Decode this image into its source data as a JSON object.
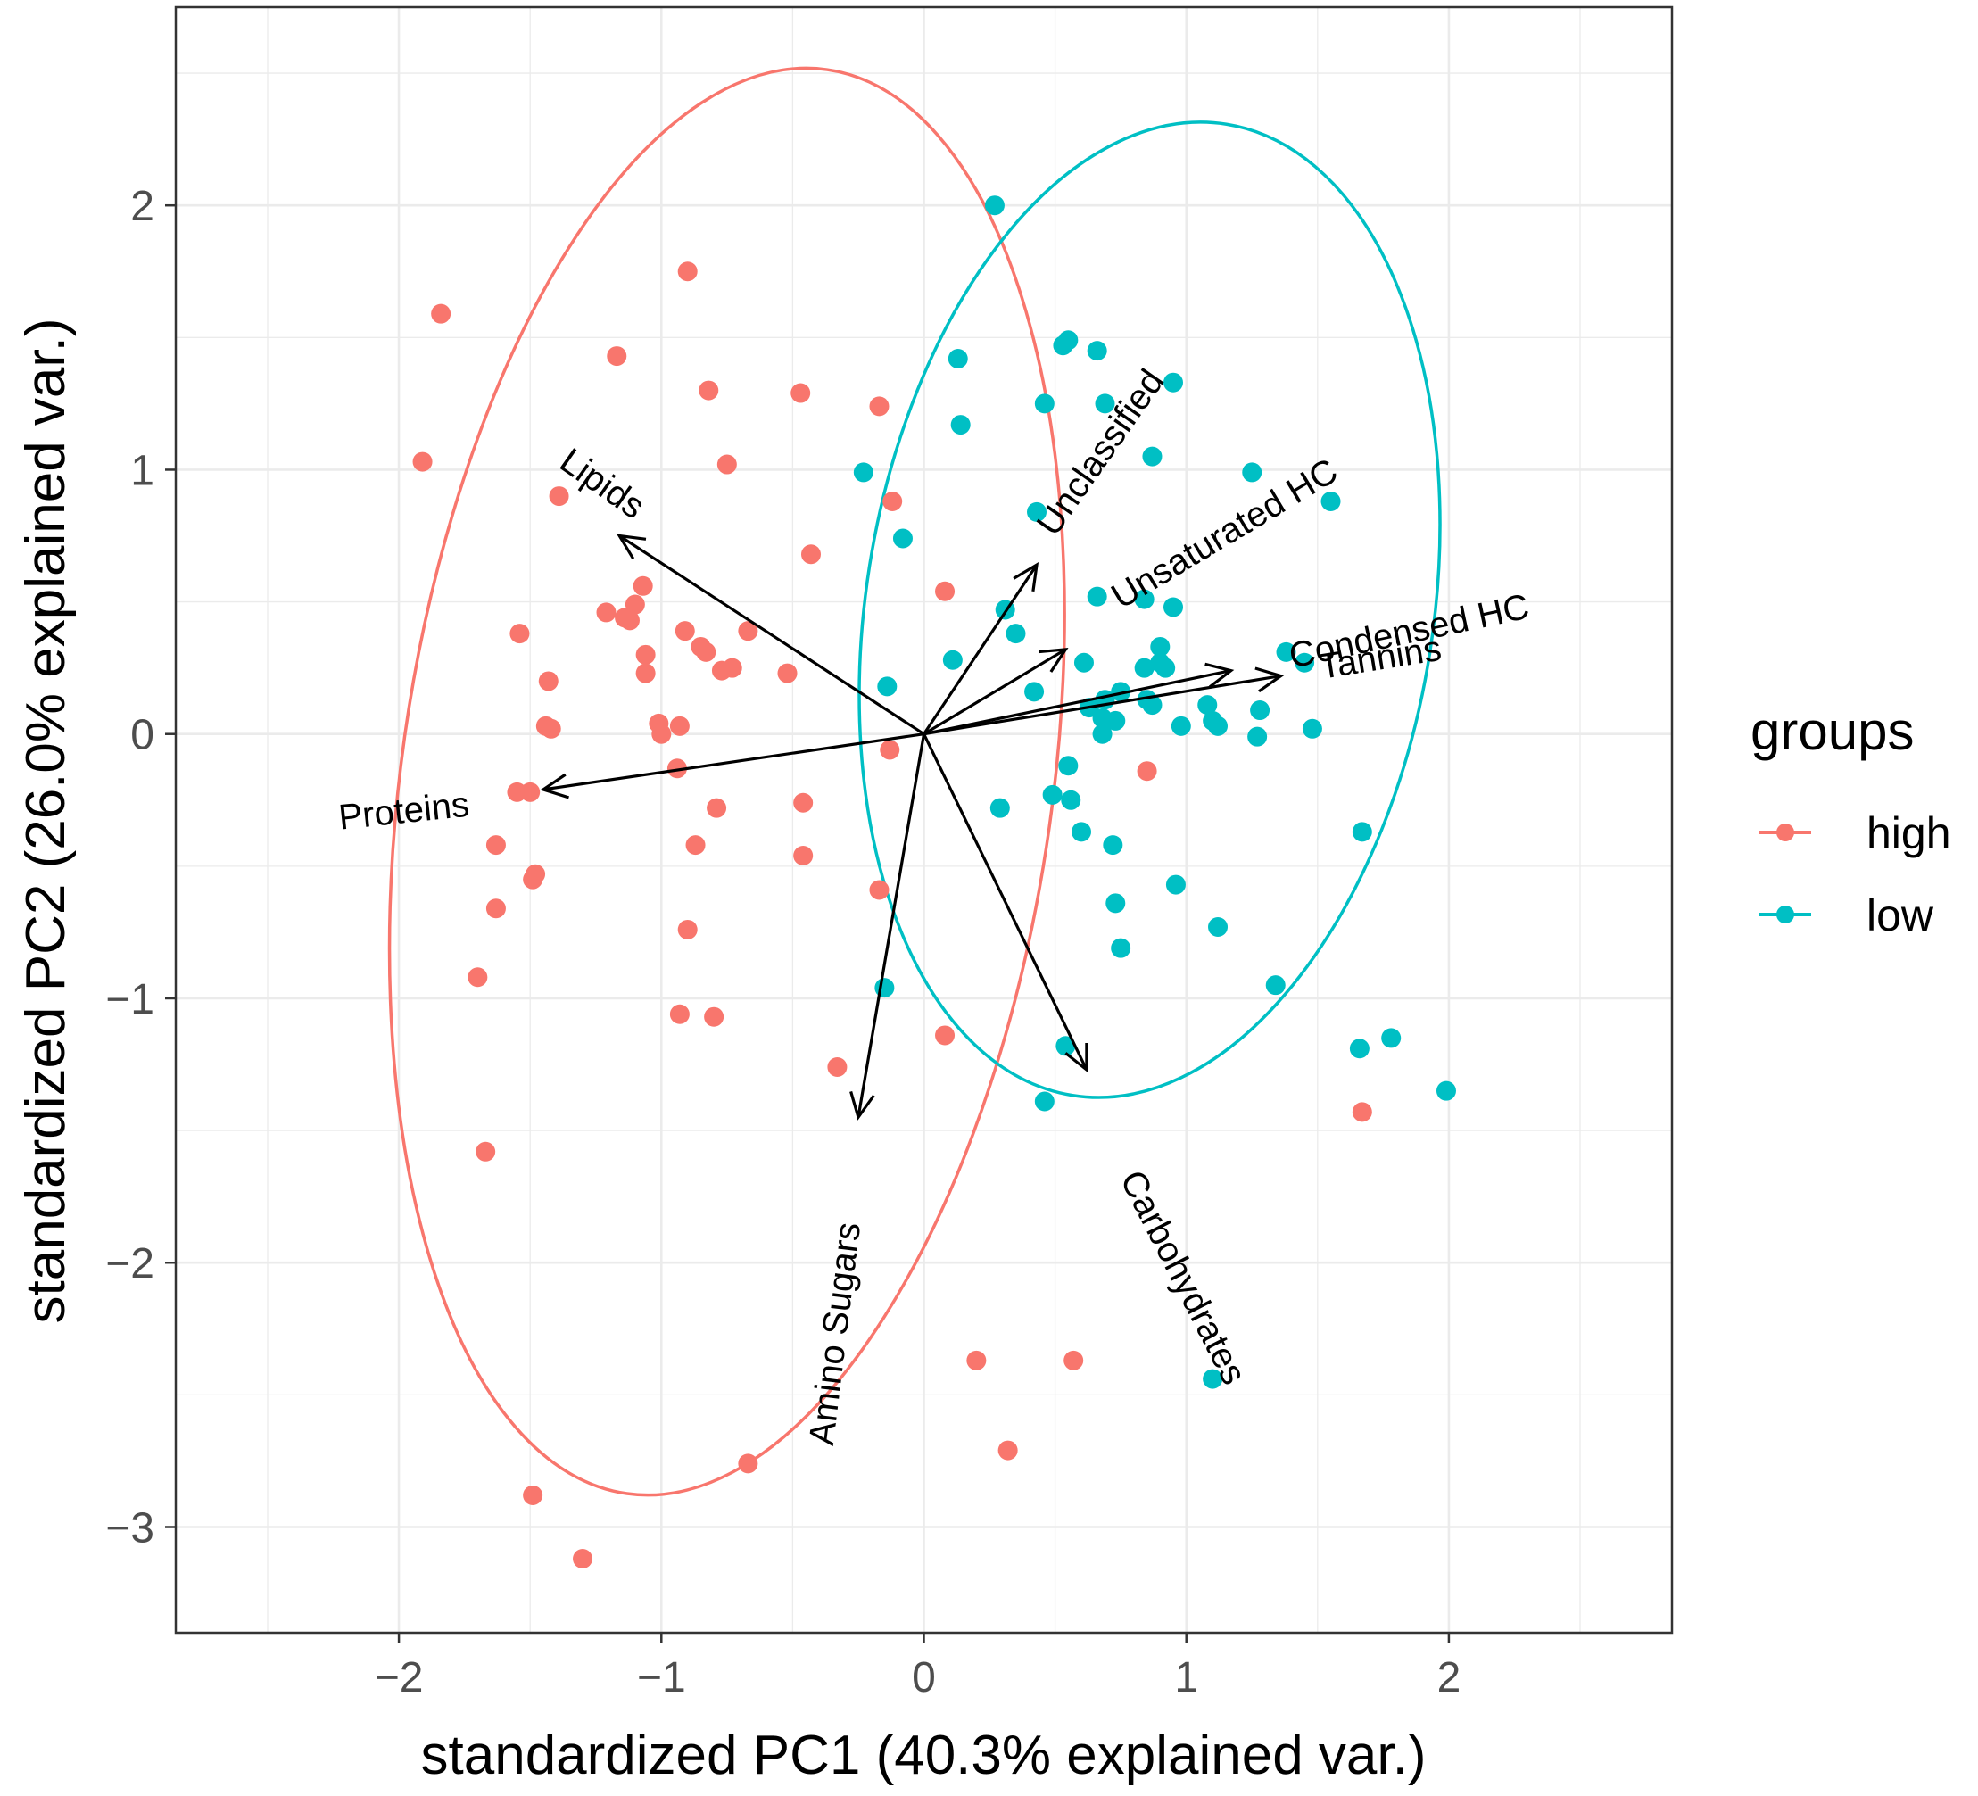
{
  "chart_data": {
    "type": "scatter",
    "subtype": "pca-biplot",
    "title": "",
    "xlabel": "standardized PC1 (40.3% explained var.)",
    "ylabel": "standardized PC2 (26.0% explained var.)",
    "xlim": [
      -2.85,
      2.85
    ],
    "ylim": [
      -3.4,
      2.75
    ],
    "x_ticks": [
      -2,
      -1,
      0,
      1,
      2
    ],
    "y_ticks": [
      -3,
      -2,
      -1,
      0,
      1,
      2
    ],
    "x_tick_labels": [
      "−2",
      "−1",
      "0",
      "1",
      "2"
    ],
    "y_tick_labels": [
      "−3",
      "−2",
      "−1",
      "0",
      "1",
      "2"
    ],
    "grid": true,
    "legend": {
      "title": "groups",
      "position": "right",
      "entries": [
        {
          "name": "high",
          "color": "#F8766D"
        },
        {
          "name": "low",
          "color": "#00BFC4"
        }
      ]
    },
    "series": [
      {
        "name": "high",
        "color": "#F8766D",
        "points": [
          [
            -1.84,
            1.59
          ],
          [
            -1.91,
            1.03
          ],
          [
            -0.9,
            1.75
          ],
          [
            -1.17,
            1.43
          ],
          [
            -0.82,
            1.3
          ],
          [
            -0.47,
            1.29
          ],
          [
            -0.17,
            1.24
          ],
          [
            -0.75,
            1.02
          ],
          [
            -1.39,
            0.9
          ],
          [
            -0.12,
            0.88
          ],
          [
            -0.43,
            0.68
          ],
          [
            0.08,
            0.54
          ],
          [
            -1.07,
            0.56
          ],
          [
            -1.1,
            0.49
          ],
          [
            -1.14,
            0.44
          ],
          [
            -1.21,
            0.46
          ],
          [
            -1.12,
            0.43
          ],
          [
            -0.91,
            0.39
          ],
          [
            -0.67,
            0.39
          ],
          [
            -0.85,
            0.33
          ],
          [
            -0.83,
            0.31
          ],
          [
            -1.54,
            0.38
          ],
          [
            -1.06,
            0.3
          ],
          [
            -1.06,
            0.23
          ],
          [
            -0.77,
            0.24
          ],
          [
            -0.73,
            0.25
          ],
          [
            -0.52,
            0.23
          ],
          [
            -1.43,
            0.2
          ],
          [
            -1.01,
            0.04
          ],
          [
            -1.0,
            0.0
          ],
          [
            -0.93,
            0.03
          ],
          [
            -1.44,
            0.03
          ],
          [
            -1.42,
            0.02
          ],
          [
            -0.94,
            -0.13
          ],
          [
            -0.13,
            -0.06
          ],
          [
            -1.55,
            -0.22
          ],
          [
            -1.5,
            -0.22
          ],
          [
            -0.79,
            -0.28
          ],
          [
            -0.46,
            -0.26
          ],
          [
            -1.63,
            -0.42
          ],
          [
            -0.87,
            -0.42
          ],
          [
            -0.46,
            -0.46
          ],
          [
            -1.48,
            -0.53
          ],
          [
            -1.49,
            -0.55
          ],
          [
            -0.17,
            -0.59
          ],
          [
            -1.63,
            -0.66
          ],
          [
            -0.9,
            -0.74
          ],
          [
            -1.7,
            -0.92
          ],
          [
            -0.93,
            -1.06
          ],
          [
            -0.8,
            -1.07
          ],
          [
            0.08,
            -1.14
          ],
          [
            -0.33,
            -1.26
          ],
          [
            -1.67,
            -1.58
          ],
          [
            1.67,
            -1.43
          ],
          [
            0.85,
            -0.14
          ],
          [
            0.2,
            -2.37
          ],
          [
            0.57,
            -2.37
          ],
          [
            -0.67,
            -2.76
          ],
          [
            0.32,
            -2.71
          ],
          [
            -1.49,
            -2.88
          ],
          [
            -1.3,
            -3.12
          ]
        ]
      },
      {
        "name": "low",
        "color": "#00BFC4",
        "points": [
          [
            0.27,
            2.0
          ],
          [
            0.55,
            1.49
          ],
          [
            0.53,
            1.47
          ],
          [
            0.13,
            1.42
          ],
          [
            0.66,
            1.45
          ],
          [
            0.95,
            1.33
          ],
          [
            0.46,
            1.25
          ],
          [
            0.69,
            1.25
          ],
          [
            0.14,
            1.17
          ],
          [
            -0.23,
            0.99
          ],
          [
            0.87,
            1.05
          ],
          [
            1.25,
            0.99
          ],
          [
            1.55,
            0.88
          ],
          [
            0.43,
            0.84
          ],
          [
            -0.08,
            0.74
          ],
          [
            0.66,
            0.52
          ],
          [
            0.84,
            0.51
          ],
          [
            0.95,
            0.48
          ],
          [
            0.31,
            0.47
          ],
          [
            0.35,
            0.38
          ],
          [
            0.9,
            0.33
          ],
          [
            1.38,
            0.31
          ],
          [
            0.11,
            0.28
          ],
          [
            0.61,
            0.27
          ],
          [
            0.9,
            0.27
          ],
          [
            0.84,
            0.25
          ],
          [
            0.92,
            0.25
          ],
          [
            1.45,
            0.27
          ],
          [
            -0.14,
            0.18
          ],
          [
            0.42,
            0.16
          ],
          [
            0.63,
            0.1
          ],
          [
            0.75,
            0.16
          ],
          [
            0.69,
            0.13
          ],
          [
            0.85,
            0.13
          ],
          [
            0.87,
            0.11
          ],
          [
            1.08,
            0.11
          ],
          [
            0.68,
            0.06
          ],
          [
            0.73,
            0.05
          ],
          [
            1.28,
            0.09
          ],
          [
            1.1,
            0.05
          ],
          [
            1.12,
            0.03
          ],
          [
            0.98,
            0.03
          ],
          [
            0.68,
            0.0
          ],
          [
            1.27,
            -0.01
          ],
          [
            1.48,
            0.02
          ],
          [
            0.55,
            -0.12
          ],
          [
            0.49,
            -0.23
          ],
          [
            0.56,
            -0.25
          ],
          [
            0.29,
            -0.28
          ],
          [
            0.6,
            -0.37
          ],
          [
            1.67,
            -0.37
          ],
          [
            0.72,
            -0.42
          ],
          [
            0.96,
            -0.57
          ],
          [
            0.73,
            -0.64
          ],
          [
            1.12,
            -0.73
          ],
          [
            0.75,
            -0.81
          ],
          [
            1.34,
            -0.95
          ],
          [
            -0.15,
            -0.96
          ],
          [
            0.54,
            -1.18
          ],
          [
            1.66,
            -1.19
          ],
          [
            1.78,
            -1.15
          ],
          [
            0.46,
            -1.39
          ],
          [
            1.99,
            -1.35
          ],
          [
            1.1,
            -2.44
          ]
        ]
      }
    ],
    "ellipses": [
      {
        "group": "high",
        "color": "#F8766D",
        "center": [
          -0.75,
          -0.18
        ],
        "semi_axes": [
          1.24,
          2.72
        ],
        "rotation_deg": 8
      },
      {
        "group": "low",
        "color": "#00BFC4",
        "center": [
          0.86,
          0.47
        ],
        "semi_axes": [
          1.08,
          1.86
        ],
        "rotation_deg": 9
      }
    ],
    "loadings": [
      {
        "name": "Lipids",
        "end": [
          -1.16,
          0.75
        ],
        "label_pos": [
          -1.23,
          0.94
        ],
        "label_rotation": 35
      },
      {
        "name": "Proteins",
        "end": [
          -1.45,
          -0.21
        ],
        "label_pos": [
          -1.98,
          -0.3
        ],
        "label_rotation": -6
      },
      {
        "name": "Unclassified",
        "end": [
          0.43,
          0.64
        ],
        "label_pos": [
          0.68,
          1.06
        ],
        "label_rotation": -55
      },
      {
        "name": "Unsaturated HC",
        "end": [
          0.54,
          0.32
        ],
        "label_pos": [
          1.15,
          0.75
        ],
        "label_rotation": -31
      },
      {
        "name": "Condensed HC",
        "end": [
          1.17,
          0.24
        ],
        "label_pos": [
          1.85,
          0.38
        ],
        "label_rotation": -12
      },
      {
        "name": "Tannins",
        "end": [
          1.36,
          0.22
        ],
        "label_pos": [
          1.74,
          0.28
        ],
        "label_rotation": -9
      },
      {
        "name": "Carbohydrates",
        "end": [
          0.62,
          -1.27
        ],
        "label_pos": [
          0.98,
          -2.06
        ],
        "label_rotation": 63
      },
      {
        "name": "Amino Sugars",
        "end": [
          -0.25,
          -1.45
        ],
        "label_pos": [
          -0.33,
          -2.27
        ],
        "label_rotation": -83
      }
    ]
  }
}
